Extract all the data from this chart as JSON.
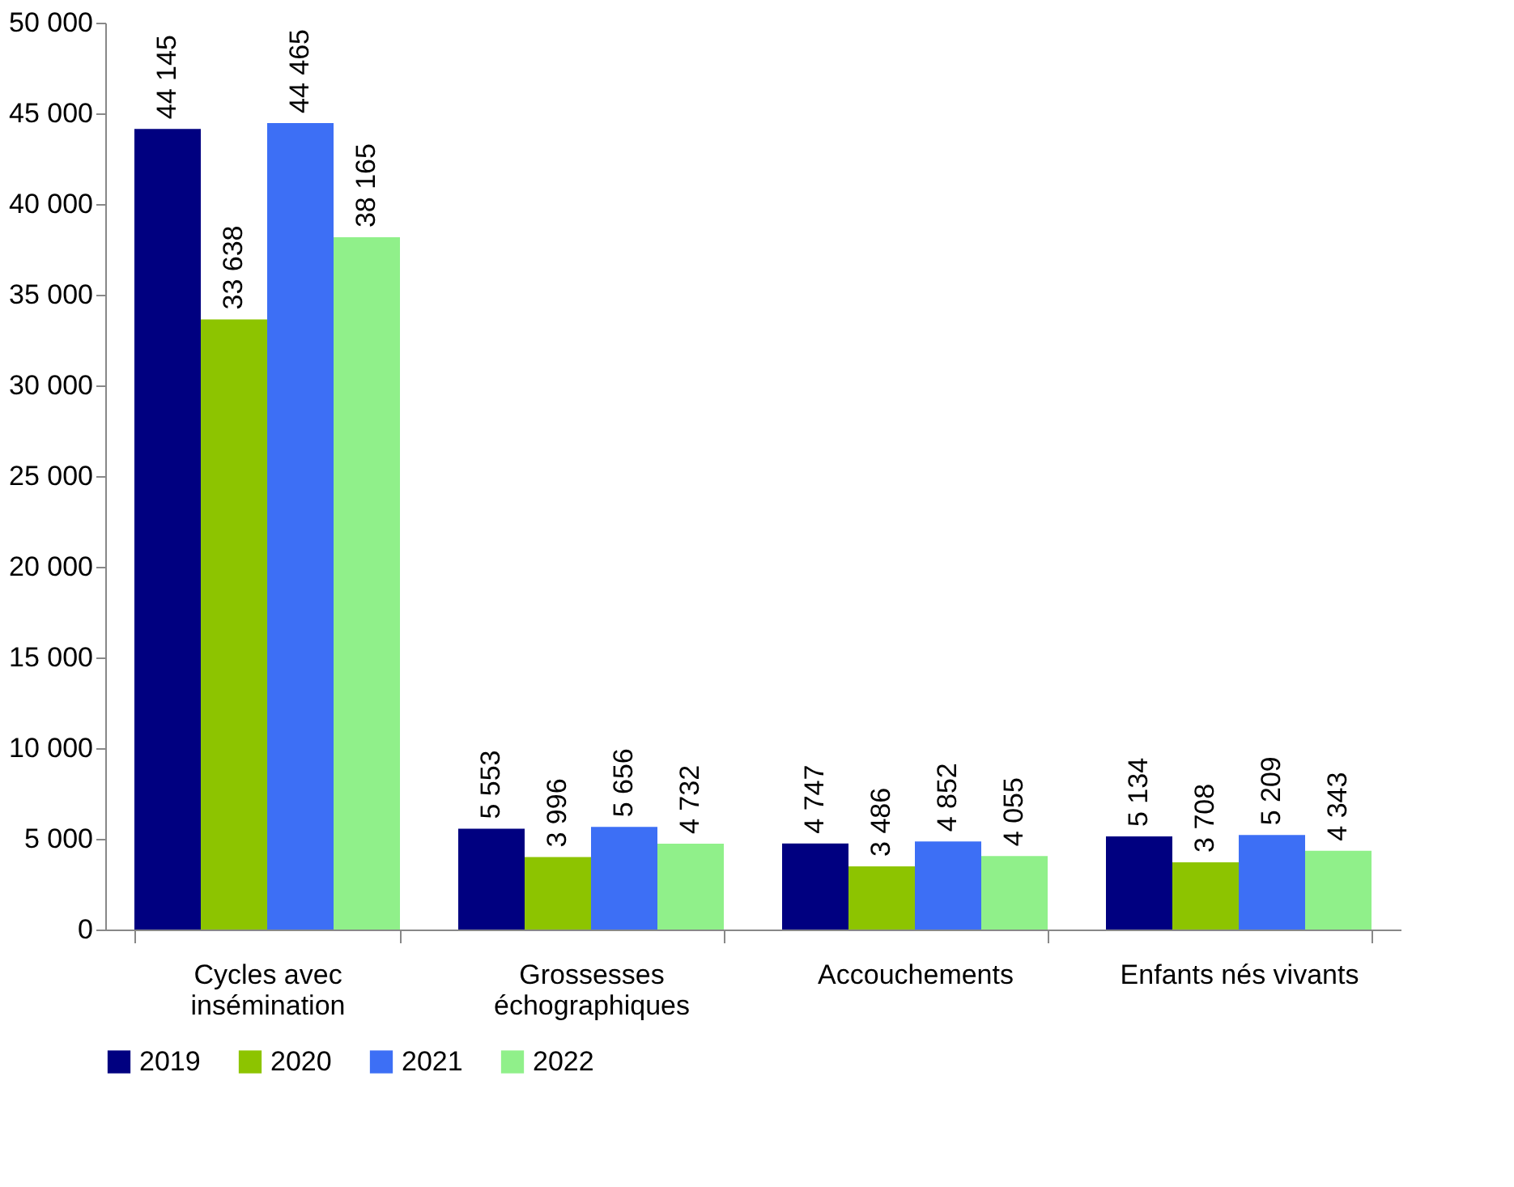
{
  "chart_data": {
    "type": "bar",
    "categories": [
      "Cycles avec\ninsémination",
      "Grossesses\néchographiques",
      "Accouchements",
      "Enfants nés vivants"
    ],
    "series": [
      {
        "name": "2019",
        "color": "#000080",
        "values": [
          44145,
          5553,
          4747,
          5134
        ],
        "value_labels": [
          "44 145",
          "5 553",
          "4 747",
          "5 134"
        ]
      },
      {
        "name": "2020",
        "color": "#8dc400",
        "values": [
          33638,
          3996,
          3486,
          3708
        ],
        "value_labels": [
          "33 638",
          "3 996",
          "3 486",
          "3 708"
        ]
      },
      {
        "name": "2021",
        "color": "#3d6ff5",
        "values": [
          44465,
          5656,
          4852,
          5209
        ],
        "value_labels": [
          "44 465",
          "5 656",
          "4 852",
          "5 209"
        ]
      },
      {
        "name": "2022",
        "color": "#90f08a",
        "values": [
          38165,
          4732,
          4055,
          4343
        ],
        "value_labels": [
          "38 165",
          "4 732",
          "4 055",
          "4 343"
        ]
      }
    ],
    "ylim": [
      0,
      50000
    ],
    "yticks": [
      {
        "value": 0,
        "label": "0"
      },
      {
        "value": 5000,
        "label": "5 000"
      },
      {
        "value": 10000,
        "label": "10 000"
      },
      {
        "value": 15000,
        "label": "15 000"
      },
      {
        "value": 20000,
        "label": "20 000"
      },
      {
        "value": 25000,
        "label": "25 000"
      },
      {
        "value": 30000,
        "label": "30 000"
      },
      {
        "value": 35000,
        "label": "35 000"
      },
      {
        "value": 40000,
        "label": "40 000"
      },
      {
        "value": 45000,
        "label": "45 000"
      },
      {
        "value": 50000,
        "label": "50 000"
      }
    ],
    "grid": false,
    "legend": "bottom"
  }
}
